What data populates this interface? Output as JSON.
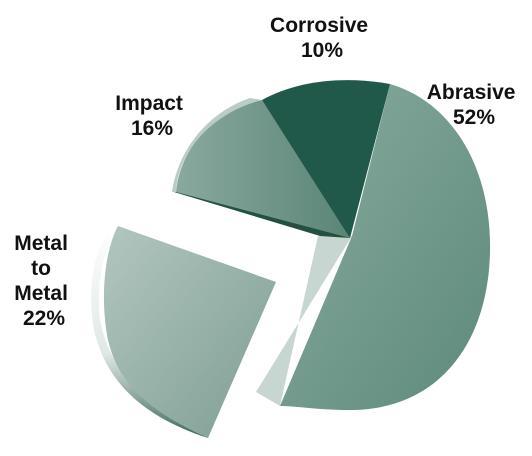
{
  "chart_data": {
    "type": "pie",
    "style": "3d-exploded",
    "categories": [
      "Abrasive",
      "Metal to Metal",
      "Impact",
      "Corrosive"
    ],
    "values": [
      52,
      22,
      16,
      10
    ],
    "value_labels": [
      "52%",
      "22%",
      "16%",
      "10%"
    ],
    "label_lines": [
      [
        "Abrasive",
        "52%"
      ],
      [
        "Metal",
        "to",
        "Metal",
        "22%"
      ],
      [
        "Impact",
        "16%"
      ],
      [
        "Corrosive",
        "10%"
      ]
    ],
    "exploded": [
      "Metal to Metal"
    ],
    "colors": {
      "Abrasive": {
        "top": "#6f9a8c",
        "side": "#c7d6d0"
      },
      "Metal to Metal": {
        "top": "#95b0a6",
        "side": "#eef3f1"
      },
      "Impact": {
        "top": "#5f8c7c",
        "side": "#2f5e4f"
      },
      "Corrosive": {
        "top": "#20584a",
        "side": "#123e33"
      }
    }
  }
}
